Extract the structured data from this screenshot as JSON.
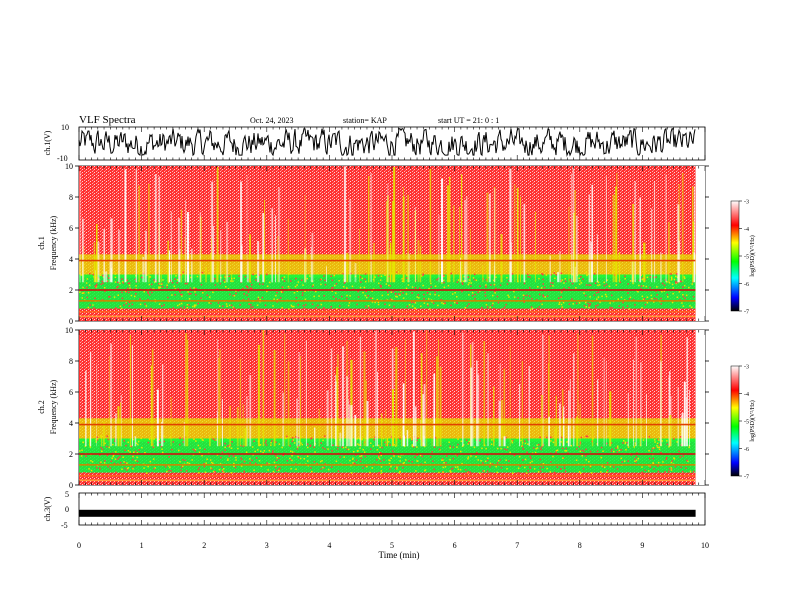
{
  "header": {
    "title": "VLF Spectra",
    "date": "Oct. 24, 2023",
    "station": "station= KAP",
    "start": "start UT =  21: 0  : 1"
  },
  "axes": {
    "ch1_label": "ch.1(V)",
    "ch3_label": "ch.3(V)",
    "freq1_label_a": "ch.1",
    "freq1_label_b": "Frequency (kHz)",
    "freq2_label_a": "ch.2",
    "freq2_label_b": "Frequency (kHz)",
    "time_label": "Time (min)",
    "colorbar_label": "log(PSD)(V²/Hz)"
  },
  "colors": {
    "spec_top": "#ff2020",
    "spec_mid": "#e6e600",
    "spec_low": "#00ff40",
    "bar_max": "#ff0000",
    "bar_min": "#000040"
  },
  "chart_data": [
    {
      "type": "line",
      "name_label": "ch.1(V)",
      "xlim": [
        0,
        10
      ],
      "ylim": [
        -10,
        10
      ],
      "y_ticks": [
        "10",
        "-10"
      ],
      "data_extent_min": 9.85,
      "description_values": {
        "amplitude_min": -7,
        "amplitude_max": 9
      }
    },
    {
      "type": "heatmap",
      "channel": "ch.1",
      "xlabel": "Time (min)",
      "ylabel": "Frequency (kHz)",
      "xlim": [
        0,
        10
      ],
      "ylim": [
        0,
        10
      ],
      "y_ticks": [
        "0",
        "2",
        "4",
        "6",
        "8",
        "10"
      ],
      "colorbar": {
        "label": "log(PSD)(V²/Hz)",
        "range": [
          -7,
          -3
        ],
        "ticks": [
          "-3",
          "-4",
          "-5",
          "-6",
          "-7"
        ]
      }
    },
    {
      "type": "heatmap",
      "channel": "ch.2",
      "xlabel": "Time (min)",
      "ylabel": "Frequency (kHz)",
      "xlim": [
        0,
        10
      ],
      "ylim": [
        0,
        10
      ],
      "y_ticks": [
        "0",
        "2",
        "4",
        "6",
        "8",
        "10"
      ],
      "colorbar": {
        "label": "log(PSD)(V²/Hz)",
        "range": [
          -7,
          -3
        ],
        "ticks": [
          "-3",
          "-4",
          "-5",
          "-6",
          "-7"
        ]
      }
    },
    {
      "type": "line",
      "name_label": "ch.3(V)",
      "xlim": [
        0,
        10
      ],
      "ylim": [
        -5,
        5
      ],
      "y_ticks": [
        "5",
        "0",
        "-5"
      ],
      "level": -1.2
    }
  ],
  "x_ticks": [
    "0",
    "1",
    "2",
    "3",
    "4",
    "5",
    "6",
    "7",
    "8",
    "9",
    "10"
  ]
}
